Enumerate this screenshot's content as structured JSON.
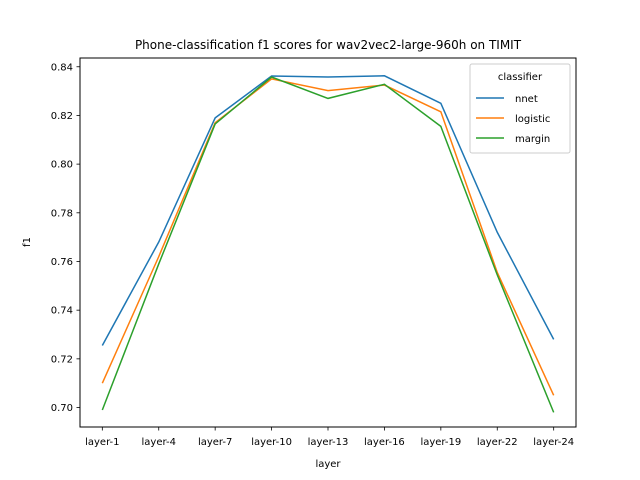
{
  "chart_data": {
    "type": "line",
    "title": "Phone-classification f1 scores for wav2vec2-large-960h on TIMIT",
    "xlabel": "layer",
    "ylabel": "f1",
    "categories": [
      "layer-1",
      "layer-4",
      "layer-7",
      "layer-10",
      "layer-13",
      "layer-16",
      "layer-19",
      "layer-22",
      "layer-24"
    ],
    "ylim": [
      0.692,
      0.8436
    ],
    "yticks": [
      "0.70",
      "0.72",
      "0.74",
      "0.76",
      "0.78",
      "0.80",
      "0.82",
      "0.84"
    ],
    "grid": false,
    "legend": {
      "title": "classifier",
      "placement": "upper right"
    },
    "series": [
      {
        "name": "nnet",
        "color": "#1f77b4",
        "values": [
          0.7255,
          0.768,
          0.819,
          0.8362,
          0.8358,
          0.8363,
          0.825,
          0.772,
          0.728
        ]
      },
      {
        "name": "logistic",
        "color": "#ff7f0e",
        "values": [
          0.71,
          0.762,
          0.817,
          0.835,
          0.8302,
          0.8325,
          0.8215,
          0.7555,
          0.705
        ]
      },
      {
        "name": "margin",
        "color": "#2ca02c",
        "values": [
          0.699,
          0.759,
          0.8165,
          0.8358,
          0.827,
          0.8328,
          0.8155,
          0.7545,
          0.698
        ]
      }
    ]
  }
}
